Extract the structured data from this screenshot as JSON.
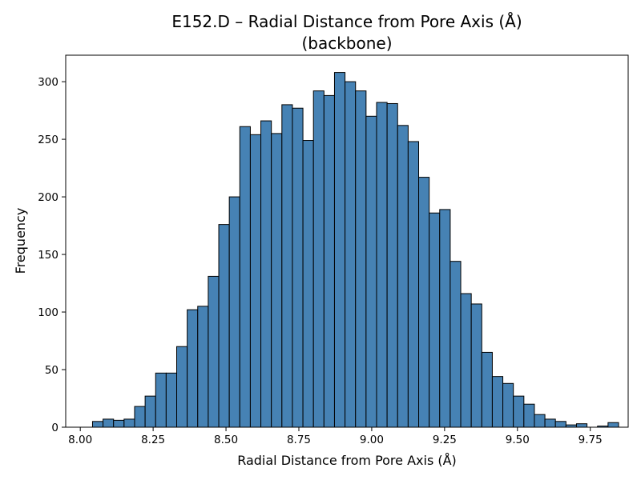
{
  "chart_data": {
    "type": "bar",
    "title_line1": "E152.D – Radial Distance from Pore Axis (Å)",
    "title_line2": "(backbone)",
    "xlabel": "Radial Distance from Pore Axis (Å)",
    "ylabel": "Frequency",
    "xlim": [
      7.95,
      9.88
    ],
    "ylim": [
      0,
      323
    ],
    "xticks": [
      8.0,
      8.25,
      8.5,
      8.75,
      9.0,
      9.25,
      9.5,
      9.75
    ],
    "xtick_labels": [
      "8.00",
      "8.25",
      "8.50",
      "8.75",
      "9.00",
      "9.25",
      "9.50",
      "9.75"
    ],
    "yticks": [
      0,
      50,
      100,
      150,
      200,
      250,
      300
    ],
    "ytick_labels": [
      "0",
      "50",
      "100",
      "150",
      "200",
      "250",
      "300"
    ],
    "bin_start": 8.042,
    "bin_width": 0.0361,
    "values": [
      5,
      7,
      6,
      7,
      18,
      27,
      47,
      47,
      70,
      102,
      105,
      131,
      176,
      200,
      261,
      254,
      266,
      255,
      280,
      277,
      249,
      292,
      288,
      308,
      300,
      292,
      270,
      282,
      281,
      262,
      248,
      217,
      186,
      189,
      144,
      116,
      107,
      65,
      44,
      38,
      27,
      20,
      11,
      7,
      5,
      2,
      3,
      0,
      1,
      4
    ],
    "bar_color": "#4682b4",
    "edge_color": "#000000",
    "grid": false,
    "legend": "none"
  }
}
